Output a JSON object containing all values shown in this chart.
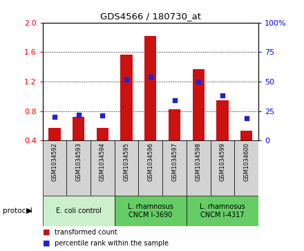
{
  "title": "GDS4566 / 180730_at",
  "samples": [
    "GSM1034592",
    "GSM1034593",
    "GSM1034594",
    "GSM1034595",
    "GSM1034596",
    "GSM1034597",
    "GSM1034598",
    "GSM1034599",
    "GSM1034600"
  ],
  "transformed_count": [
    0.57,
    0.72,
    0.57,
    1.57,
    1.82,
    0.82,
    1.37,
    0.95,
    0.53
  ],
  "percentile_rank": [
    20,
    22,
    21,
    52,
    54,
    34,
    50,
    38,
    19
  ],
  "ylim_left": [
    0.4,
    2.0
  ],
  "ylim_right": [
    0,
    100
  ],
  "yticks_left": [
    0.4,
    0.8,
    1.2,
    1.6,
    2.0
  ],
  "yticks_right": [
    0,
    25,
    50,
    75,
    100
  ],
  "bar_color": "#CC1111",
  "scatter_color": "#2222CC",
  "bar_bottom": 0.4,
  "group_boundaries": [
    {
      "start": 0,
      "end": 2,
      "label": "E. coli control",
      "color": "#ccf0cc"
    },
    {
      "start": 3,
      "end": 5,
      "label": "L. rhamnosus\nCNCM I-3690",
      "color": "#66cc66"
    },
    {
      "start": 6,
      "end": 8,
      "label": "L. rhamnosus\nCNCM I-4317",
      "color": "#66cc66"
    }
  ],
  "legend_items": [
    {
      "label": "transformed count",
      "color": "#CC1111"
    },
    {
      "label": "percentile rank within the sample",
      "color": "#2222CC"
    }
  ],
  "protocol_label": "protocol"
}
